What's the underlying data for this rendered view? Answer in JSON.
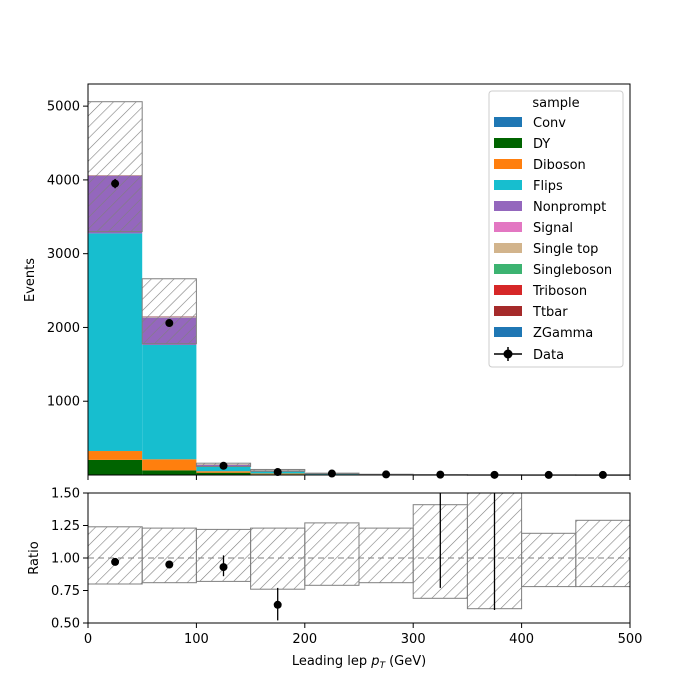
{
  "chart_data": [
    {
      "type": "bar",
      "stacked": true,
      "xlabel": "Leading lep",
      "xlabel_sub": "p",
      "xlabel_subscript": "T",
      "xlabel_unit": "(GeV)",
      "ylabel": "Events",
      "xlim": [
        0,
        500
      ],
      "ylim": [
        0,
        5300
      ],
      "xticks": [
        "0",
        "100",
        "200",
        "300",
        "400",
        "500"
      ],
      "yticks": [
        "1000",
        "2000",
        "3000",
        "4000",
        "5000"
      ],
      "ytick_values": [
        1000,
        2000,
        3000,
        4000,
        5000
      ],
      "bin_edges": [
        0,
        50,
        100,
        150,
        200,
        250,
        300,
        350,
        400,
        450,
        500
      ],
      "legend_title": "sample",
      "legend_placement": "upper-right",
      "series": [
        {
          "name": "Conv",
          "color": "#1f77b4",
          "values": [
            5,
            3,
            1,
            0,
            0,
            0,
            0,
            0,
            0,
            0
          ]
        },
        {
          "name": "DY",
          "color": "#006400",
          "values": [
            200,
            60,
            30,
            10,
            3,
            1,
            0.5,
            0.3,
            0.2,
            0.1
          ]
        },
        {
          "name": "Diboson",
          "color": "#ff7f0e",
          "values": [
            120,
            150,
            20,
            10,
            4,
            2,
            1,
            0.5,
            0.3,
            0.2
          ]
        },
        {
          "name": "Flips",
          "color": "#17becf",
          "values": [
            2950,
            1550,
            70,
            30,
            7,
            2,
            0.5,
            0.3,
            0.2,
            0.1
          ]
        },
        {
          "name": "Nonprompt",
          "color": "#9467bd",
          "values": [
            780,
            370,
            15,
            8,
            3,
            1.5,
            0.5,
            0.3,
            0.2,
            0.1
          ]
        },
        {
          "name": "Signal",
          "color": "#e377c2",
          "values": [
            2,
            2,
            1,
            0.5,
            0.3,
            0.2,
            0.1,
            0.05,
            0.05,
            0.05
          ]
        },
        {
          "name": "Single top",
          "color": "#d2b48c",
          "values": [
            3,
            5,
            2,
            1,
            0.5,
            0.2,
            0.1,
            0.05,
            0.05,
            0.05
          ]
        },
        {
          "name": "Singleboson",
          "color": "#3cb371",
          "values": [
            1,
            2,
            2,
            3,
            1,
            0.5,
            0.2,
            0.1,
            0.05,
            0.05
          ]
        },
        {
          "name": "Triboson",
          "color": "#d62728",
          "values": [
            1,
            1,
            0.5,
            0.3,
            0.2,
            0.1,
            0.1,
            0.05,
            0.05,
            0.05
          ]
        },
        {
          "name": "Ttbar",
          "color": "#a52a2a",
          "values": [
            3,
            5,
            3,
            2,
            1,
            0.5,
            0.3,
            0.1,
            0.05,
            0.05
          ]
        },
        {
          "name": "ZGamma",
          "color": "#1f77b4",
          "values": [
            1,
            1,
            0.5,
            0.2,
            0.1,
            0.1,
            0.05,
            0.05,
            0.05,
            0.05
          ]
        }
      ],
      "uncertainty_band": {
        "low": [
          3300,
          1780,
          115,
          50,
          17,
          7,
          2.5,
          1.5,
          1,
          0.8
        ],
        "high": [
          5060,
          2660,
          160,
          75,
          25,
          10,
          5,
          3,
          2,
          1.5
        ]
      },
      "data": {
        "name": "Data",
        "color": "#000000",
        "x": [
          25,
          75,
          125,
          175,
          225,
          275,
          325,
          375,
          425,
          475
        ],
        "y": [
          3950,
          2060,
          125,
          40,
          20,
          8,
          5,
          2,
          1,
          1
        ],
        "yerr": [
          63,
          45,
          11,
          6,
          4.5,
          2.8,
          2.2,
          1.4,
          1,
          1
        ]
      }
    },
    {
      "type": "scatter",
      "xlabel": "Leading lep",
      "xlabel_sub": "p",
      "xlabel_subscript": "T",
      "xlabel_unit": "(GeV)",
      "ylabel": "Ratio",
      "xlim": [
        0,
        500
      ],
      "ylim": [
        0.5,
        1.5
      ],
      "xticks": [
        "0",
        "100",
        "200",
        "300",
        "400",
        "500"
      ],
      "yticks": [
        "0.50",
        "0.75",
        "1.00",
        "1.25",
        "1.50"
      ],
      "ytick_values": [
        0.5,
        0.75,
        1.0,
        1.25,
        1.5
      ],
      "reference_line": 1.0,
      "band": {
        "low": [
          0.8,
          0.81,
          0.82,
          0.76,
          0.79,
          0.81,
          0.69,
          0.61,
          0.78,
          0.78
        ],
        "high": [
          1.24,
          1.23,
          1.22,
          1.23,
          1.27,
          1.23,
          1.41,
          1.6,
          1.19,
          1.29
        ]
      },
      "points": {
        "x": [
          25,
          75,
          125,
          175,
          325,
          375
        ],
        "y": [
          0.97,
          0.95,
          0.93,
          0.64,
          1.1,
          1.1
        ],
        "yerr_low": [
          0.02,
          0.02,
          0.07,
          0.12,
          0.33,
          0.5
        ],
        "yerr_high": [
          0.02,
          0.02,
          0.09,
          0.13,
          0.4,
          0.4
        ],
        "marker_visible": [
          true,
          true,
          true,
          true,
          false,
          false
        ]
      }
    }
  ]
}
